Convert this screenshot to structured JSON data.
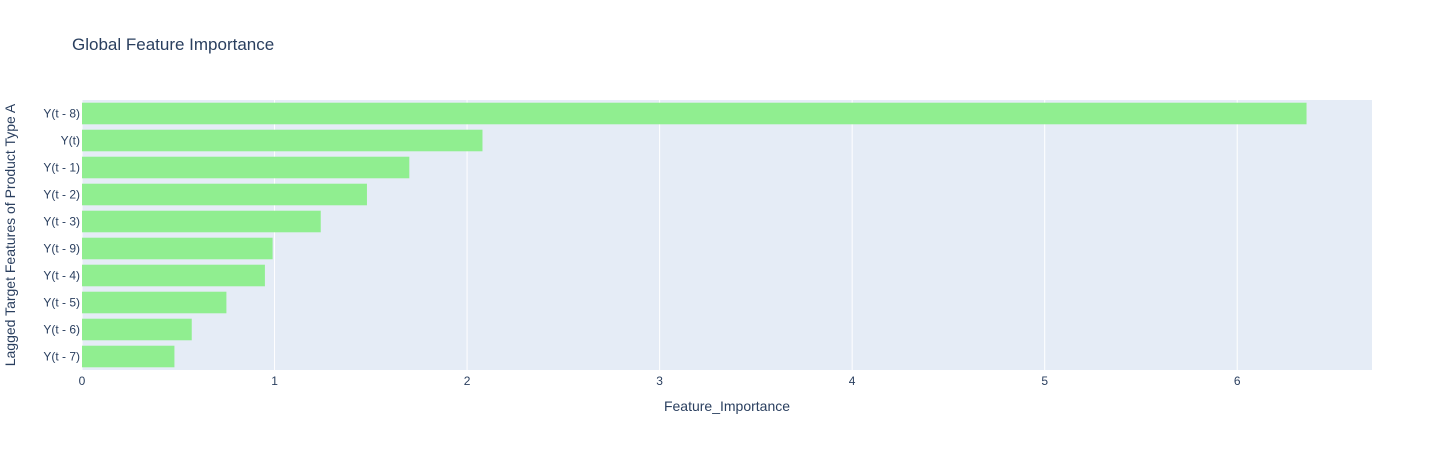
{
  "chart_data": {
    "type": "bar",
    "orientation": "horizontal",
    "title": "Global Feature Importance",
    "xlabel": "Feature_Importance",
    "ylabel": "Lagged Target Features of Product Type A",
    "categories": [
      "Y(t - 8)",
      "Y(t)",
      "Y(t - 1)",
      "Y(t - 2)",
      "Y(t - 3)",
      "Y(t - 9)",
      "Y(t - 4)",
      "Y(t - 5)",
      "Y(t - 6)",
      "Y(t - 7)"
    ],
    "values": [
      6.36,
      2.08,
      1.7,
      1.48,
      1.24,
      0.99,
      0.95,
      0.75,
      0.57,
      0.48
    ],
    "xlim": [
      0,
      6.7
    ],
    "xticks": [
      0,
      1,
      2,
      3,
      4,
      5,
      6
    ],
    "grid": true,
    "legend": "none",
    "colors": {
      "bar": "#90ee90",
      "plot_background": "#e5ecf6",
      "grid": "#ffffff",
      "text": "#2a3f5f"
    }
  }
}
